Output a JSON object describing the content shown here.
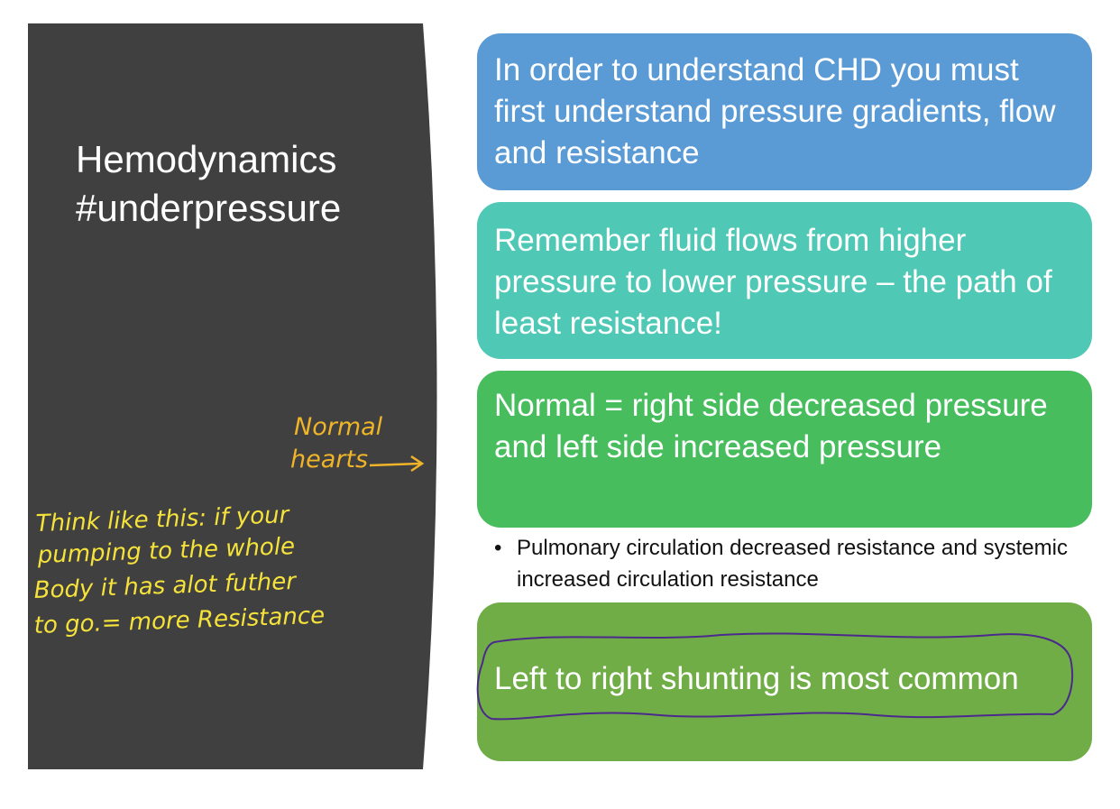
{
  "slide": {
    "title_line1": "Hemodynamics",
    "title_line2": "#underpressure",
    "boxes": [
      {
        "text": "In order to understand CHD you must first understand pressure gradients, flow and resistance"
      },
      {
        "text": "Remember fluid flows from higher pressure to lower pressure – the path of least resistance!"
      },
      {
        "text": "Normal = right side decreased pressure and left side increased pressure"
      },
      {
        "text": "Left to right shunting is most common"
      }
    ],
    "bullet": {
      "symbol": "•",
      "text": "Pulmonary circulation decreased resistance and systemic increased circulation  resistance"
    }
  },
  "annotations": {
    "orange_note": {
      "line1": "Normal",
      "line2": "hearts",
      "color": "#f0b429"
    },
    "yellow_note": {
      "line1": "Think like this: if your",
      "line2": "pumping to the whole",
      "line3": "Body it has alot futher",
      "line4": "to go.= more Resistance",
      "color": "#f5e23a"
    },
    "circle_color": "#4b2a8c"
  },
  "colors": {
    "panel": "#404040",
    "box1": "#5b9bd5",
    "box2": "#4fc8b6",
    "box3": "#47bd5e",
    "box4": "#70ad47"
  }
}
